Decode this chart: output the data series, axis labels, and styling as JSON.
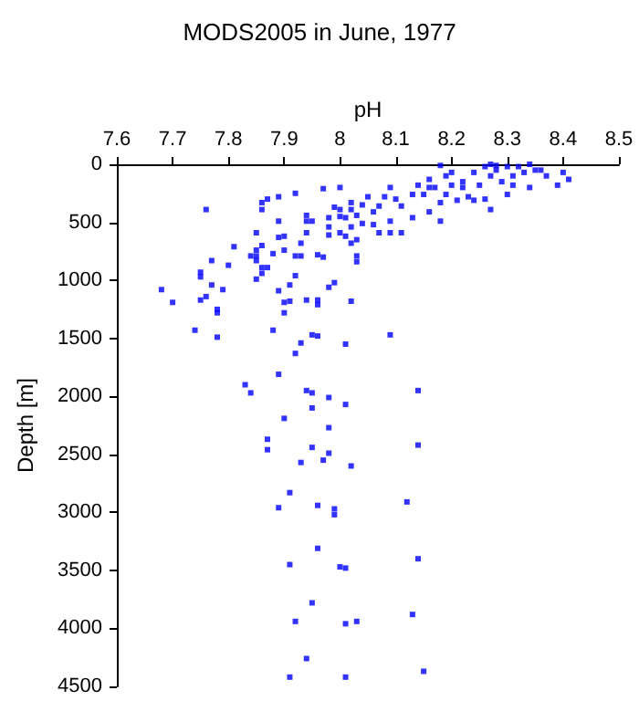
{
  "chart_data": {
    "type": "scatter",
    "title": "MODS2005 in June, 1977",
    "xlabel": "pH",
    "ylabel": "Depth [m]",
    "xlim": [
      7.6,
      8.5
    ],
    "xticks": [
      7.6,
      7.7,
      7.8,
      7.9,
      8,
      8.1,
      8.2,
      8.3,
      8.4,
      8.5
    ],
    "ylim": [
      4500,
      0
    ],
    "yticks": [
      0,
      500,
      1000,
      1500,
      2000,
      2500,
      3000,
      3500,
      4000,
      4500
    ],
    "grid": false,
    "marker": "square",
    "series": [
      {
        "color": "#0000ff",
        "x": [
          7.68,
          7.7,
          7.76,
          7.77,
          7.75,
          7.75,
          7.77,
          7.76,
          7.75,
          7.79,
          7.78,
          7.8,
          7.81,
          7.84,
          7.85,
          7.85,
          7.85,
          7.85,
          7.86,
          7.86,
          7.86,
          7.87,
          7.86,
          7.87,
          7.86,
          7.85,
          7.88,
          7.89,
          7.89,
          7.89,
          7.9,
          7.9,
          7.91,
          7.89,
          7.9,
          7.92,
          7.91,
          7.92,
          7.92,
          7.93,
          7.93,
          7.94,
          7.94,
          7.94,
          7.95,
          7.94,
          7.96,
          7.97,
          7.96,
          7.96,
          7.97,
          7.98,
          7.98,
          7.98,
          7.99,
          7.98,
          7.99,
          8.0,
          8.0,
          8.0,
          8.0,
          8.01,
          8.01,
          8.02,
          8.02,
          8.02,
          8.02,
          8.03,
          8.02,
          8.03,
          8.03,
          8.03,
          8.04,
          8.04,
          8.05,
          8.06,
          8.06,
          8.07,
          8.07,
          8.08,
          8.09,
          8.09,
          8.09,
          8.1,
          8.11,
          8.11,
          8.13,
          8.13,
          8.14,
          8.15,
          8.16,
          8.16,
          8.18,
          8.18,
          8.18,
          8.19,
          8.2,
          8.21,
          8.22,
          8.23,
          8.24,
          8.25,
          8.26,
          8.27,
          8.27,
          8.27,
          8.28,
          8.29,
          8.3,
          8.3,
          8.31,
          8.32,
          8.33,
          8.34,
          8.35,
          8.37,
          8.39,
          8.4,
          8.41,
          8.19,
          8.2,
          8.22,
          8.24,
          8.26,
          8.28,
          8.31,
          8.34,
          8.36,
          8.17,
          8.16,
          7.74,
          7.78,
          7.78,
          7.9,
          7.88,
          7.93,
          7.95,
          7.96,
          8.01,
          8.09,
          7.92,
          7.89,
          7.83,
          7.84,
          7.94,
          7.95,
          8.14,
          7.98,
          8.01,
          7.95,
          7.9,
          7.98,
          7.87,
          7.87,
          7.95,
          7.98,
          8.14,
          7.97,
          7.93,
          8.02,
          7.91,
          8.12,
          7.89,
          7.96,
          7.99,
          7.99,
          7.96,
          7.91,
          8.0,
          8.01,
          8.14,
          7.95,
          7.92,
          8.01,
          8.03,
          8.13,
          7.94,
          7.91,
          8.01,
          8.15
        ],
        "values": [
          1080,
          1190,
          390,
          830,
          930,
          970,
          1040,
          1140,
          1170,
          1080,
          1250,
          870,
          710,
          790,
          790,
          830,
          590,
          740,
          700,
          330,
          390,
          300,
          890,
          890,
          940,
          990,
          770,
          490,
          630,
          1090,
          740,
          1190,
          1180,
          280,
          620,
          250,
          1040,
          960,
          790,
          790,
          680,
          440,
          490,
          590,
          490,
          1170,
          780,
          800,
          1170,
          1210,
          210,
          610,
          540,
          1060,
          1020,
          460,
          370,
          200,
          390,
          590,
          450,
          460,
          620,
          680,
          1180,
          330,
          390,
          440,
          540,
          650,
          790,
          840,
          510,
          350,
          280,
          410,
          520,
          590,
          360,
          280,
          490,
          590,
          200,
          300,
          590,
          360,
          260,
          460,
          180,
          260,
          410,
          200,
          330,
          490,
          10,
          260,
          70,
          310,
          150,
          280,
          70,
          180,
          300,
          390,
          0,
          100,
          50,
          150,
          260,
          20,
          100,
          20,
          70,
          200,
          50,
          100,
          180,
          70,
          130,
          100,
          180,
          200,
          310,
          20,
          10,
          180,
          0,
          50,
          200,
          130,
          1430,
          1490,
          1280,
          1280,
          1430,
          1540,
          1470,
          1480,
          1550,
          1470,
          1630,
          1810,
          1900,
          1970,
          1950,
          1970,
          1950,
          2010,
          2070,
          2100,
          2190,
          2270,
          2370,
          2460,
          2440,
          2490,
          2420,
          2550,
          2570,
          2600,
          2830,
          2910,
          2960,
          2940,
          2970,
          3020,
          3310,
          3450,
          3470,
          3480,
          3400,
          3780,
          3940,
          3960,
          3940,
          3880,
          4260,
          4420,
          4420,
          4370
        ]
      }
    ]
  }
}
